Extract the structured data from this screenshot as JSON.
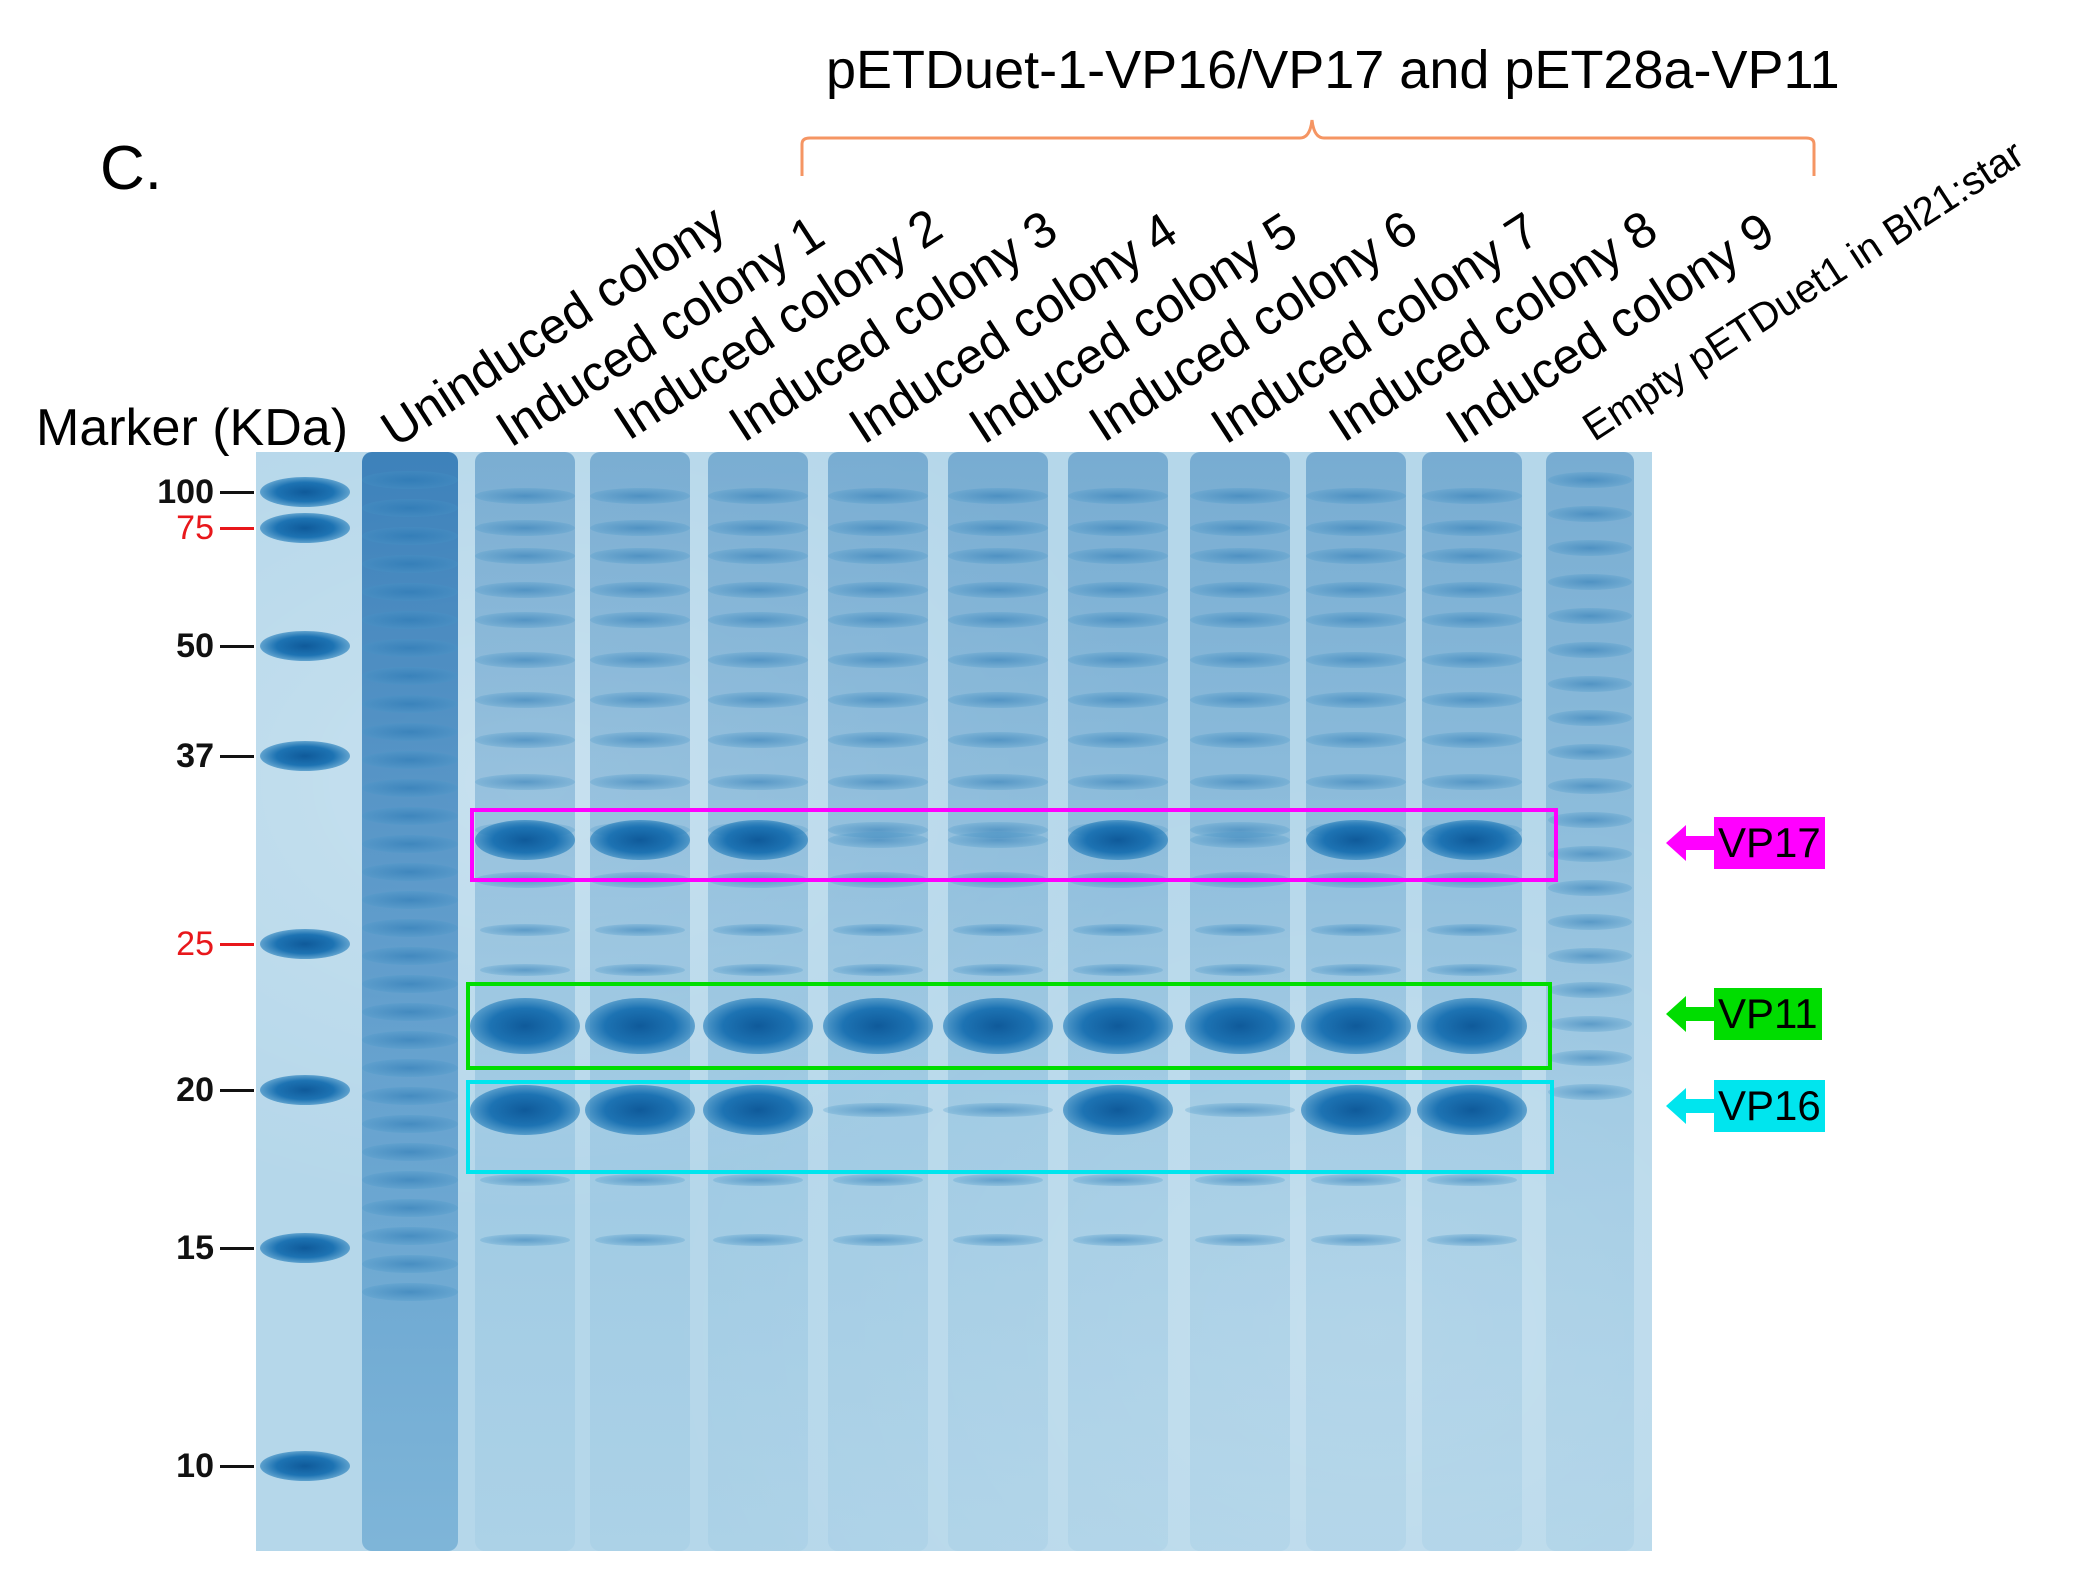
{
  "panel_label": "C.",
  "group_title": "pETDuet-1-VP16/VP17 and pET28a-VP11",
  "marker_title": "Marker (KDa)",
  "lanes": [
    "Uninduced colony",
    "Induced colony 1",
    "Induced colony 2",
    "Induced colony 3",
    "Induced colony 4",
    "Induced colony 5",
    "Induced colony 6",
    "Induced colony 7",
    "Induced colony 8",
    "Induced colony 9",
    "Empty pETDuet1 in Bl21:star"
  ],
  "markers": [
    {
      "label": "100",
      "color": "#111111"
    },
    {
      "label": "75",
      "color": "#e8171b"
    },
    {
      "label": "50",
      "color": "#111111"
    },
    {
      "label": "37",
      "color": "#111111"
    },
    {
      "label": "25",
      "color": "#e8171b"
    },
    {
      "label": "20",
      "color": "#111111"
    },
    {
      "label": "15",
      "color": "#111111"
    },
    {
      "label": "10",
      "color": "#111111"
    }
  ],
  "highlights": [
    {
      "name": "VP17",
      "label": "VP17",
      "color": "#ff00ff"
    },
    {
      "name": "VP11",
      "label": "VP11",
      "color": "#00dd00"
    },
    {
      "name": "VP16",
      "label": "VP16",
      "color": "#00e5ee"
    }
  ]
}
